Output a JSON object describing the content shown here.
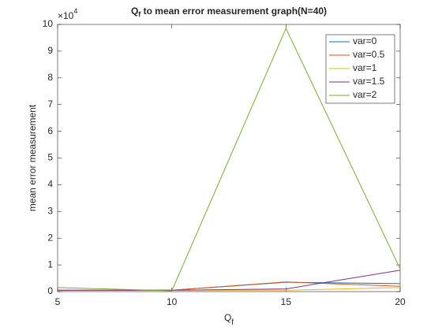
{
  "chart_data": {
    "type": "line",
    "title": [
      "Q",
      "f",
      " to mean error measurement graph(N=40)"
    ],
    "xlabel": [
      "Q",
      "f"
    ],
    "ylabel": "mean error measurement",
    "y_exponent": [
      "×10",
      "4"
    ],
    "x": [
      5,
      10,
      15,
      20
    ],
    "series": [
      {
        "name": "var=0",
        "color": "#0072BD",
        "values": [
          0.05,
          0.05,
          0.35,
          0.3
        ]
      },
      {
        "name": "var=0.5",
        "color": "#D95319",
        "values": [
          0.05,
          0.05,
          0.36,
          0.2
        ]
      },
      {
        "name": "var=1",
        "color": "#EDB120",
        "values": [
          0.05,
          0.05,
          0.05,
          0.15
        ]
      },
      {
        "name": "var=1.5",
        "color": "#7E2F8E",
        "values": [
          0.05,
          0.05,
          0.1,
          0.8
        ]
      },
      {
        "name": "var=2",
        "color": "#77AC30",
        "values": [
          0.15,
          0.03,
          9.85,
          0.85
        ]
      }
    ],
    "xlim": [
      5,
      20
    ],
    "xticks": [
      5,
      10,
      15,
      20
    ],
    "ylim": [
      0,
      10
    ],
    "yticks": [
      0,
      1,
      2,
      3,
      4,
      5,
      6,
      7,
      8,
      9,
      10
    ],
    "legend": "northeast"
  }
}
